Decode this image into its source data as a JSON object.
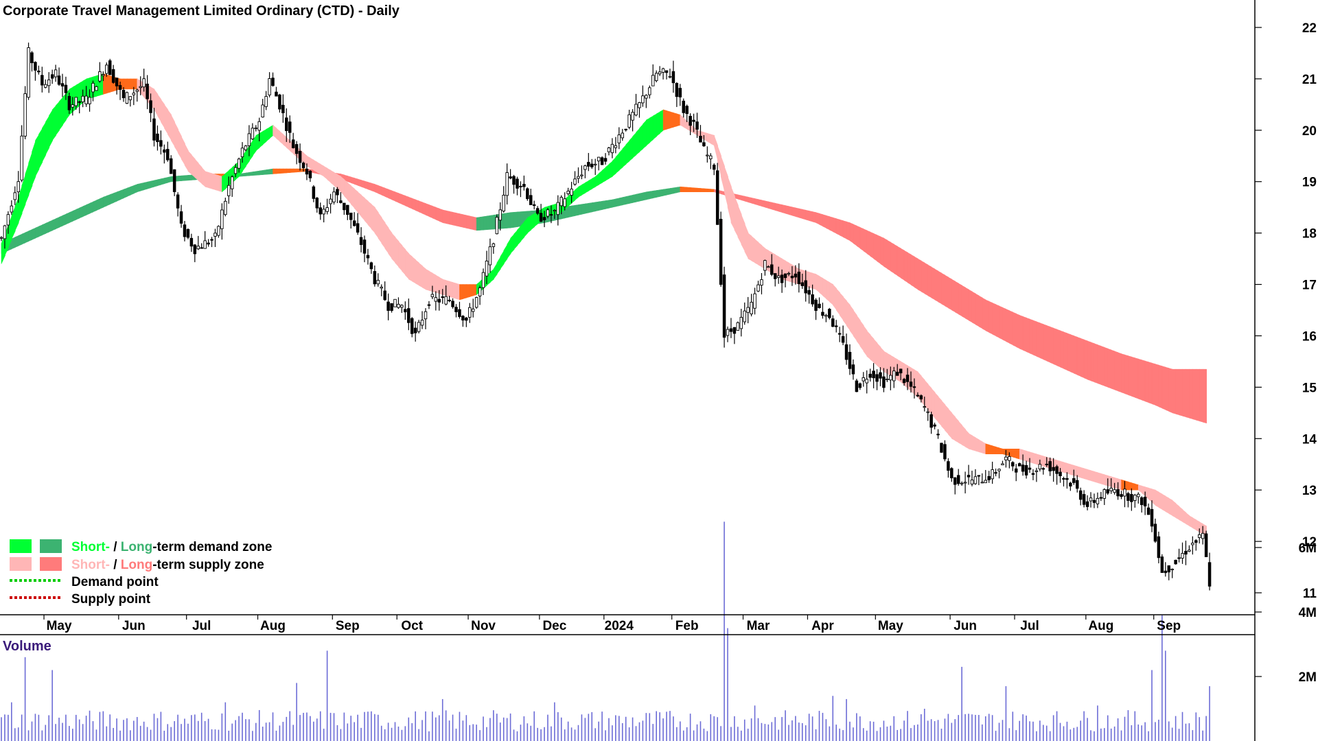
{
  "title": "Corporate Travel Management Limited Ordinary (CTD) - Daily",
  "colors": {
    "short_demand": "#00ff33",
    "long_demand": "#3cb371",
    "short_supply": "#ffb6b6",
    "long_supply": "#ff7b7b",
    "transition": "#ff6a1a",
    "demand_point": "#00cc00",
    "supply_point": "#cc0000",
    "volume_bar": "#6b6bd6",
    "volume_title": "#3a1a7a"
  },
  "legend": {
    "row1_short": "Short-",
    "row1_sep": " / ",
    "row1_long": "Long",
    "row1_rest": "-term demand zone",
    "row2_short": "Short-",
    "row2_sep": " / ",
    "row2_long": "Long",
    "row2_rest": "-term supply zone",
    "row3": "Demand point",
    "row4": "Supply point"
  },
  "volume_title": "Volume",
  "chart_data": {
    "type": "candlestick",
    "x_ticks": [
      "May",
      "Jun",
      "Jul",
      "Aug",
      "Sep",
      "Oct",
      "Nov",
      "Dec",
      "2024",
      "Feb",
      "Mar",
      "Apr",
      "May",
      "Jun",
      "Jul",
      "Aug",
      "Sep"
    ],
    "y_ticks": [
      "22",
      "21",
      "20",
      "19",
      "18",
      "17",
      "16",
      "15",
      "14",
      "13",
      "12",
      "11"
    ],
    "ylim": [
      10.6,
      22.5
    ],
    "x_range": [
      0,
      365
    ],
    "tick_positions_days": [
      17,
      39,
      59,
      80,
      102,
      121,
      142,
      163,
      182,
      202,
      223,
      242,
      262,
      284,
      303,
      324,
      344
    ],
    "price_anchors": [
      [
        0,
        17.9
      ],
      [
        5,
        19.1
      ],
      [
        8,
        21.5
      ],
      [
        12,
        20.9
      ],
      [
        16,
        21.1
      ],
      [
        20,
        20.5
      ],
      [
        25,
        20.6
      ],
      [
        31,
        21.3
      ],
      [
        36,
        20.6
      ],
      [
        42,
        20.9
      ],
      [
        45,
        19.9
      ],
      [
        49,
        19.5
      ],
      [
        53,
        18.1
      ],
      [
        57,
        17.7
      ],
      [
        63,
        17.9
      ],
      [
        67,
        18.9
      ],
      [
        71,
        19.6
      ],
      [
        76,
        20.2
      ],
      [
        79,
        21.0
      ],
      [
        82,
        20.5
      ],
      [
        86,
        19.7
      ],
      [
        90,
        19.2
      ],
      [
        94,
        18.3
      ],
      [
        98,
        18.8
      ],
      [
        102,
        18.4
      ],
      [
        106,
        17.8
      ],
      [
        110,
        17.1
      ],
      [
        114,
        16.6
      ],
      [
        118,
        16.6
      ],
      [
        122,
        16.0
      ],
      [
        126,
        16.7
      ],
      [
        132,
        16.7
      ],
      [
        137,
        16.3
      ],
      [
        141,
        16.9
      ],
      [
        145,
        17.9
      ],
      [
        149,
        19.1
      ],
      [
        154,
        18.9
      ],
      [
        158,
        18.3
      ],
      [
        163,
        18.4
      ],
      [
        168,
        18.9
      ],
      [
        172,
        19.3
      ],
      [
        177,
        19.4
      ],
      [
        183,
        20.0
      ],
      [
        188,
        20.5
      ],
      [
        193,
        21.1
      ],
      [
        197,
        21.1
      ],
      [
        201,
        20.4
      ],
      [
        204,
        20.1
      ],
      [
        207,
        19.6
      ],
      [
        210,
        19.3
      ],
      [
        213,
        16.0
      ],
      [
        217,
        16.2
      ],
      [
        221,
        16.6
      ],
      [
        225,
        17.4
      ],
      [
        229,
        17.1
      ],
      [
        234,
        17.2
      ],
      [
        238,
        16.8
      ],
      [
        241,
        16.5
      ],
      [
        244,
        16.4
      ],
      [
        248,
        15.8
      ],
      [
        252,
        15.0
      ],
      [
        256,
        15.3
      ],
      [
        260,
        15.1
      ],
      [
        264,
        15.3
      ],
      [
        268,
        15.0
      ],
      [
        272,
        14.6
      ],
      [
        276,
        14.0
      ],
      [
        280,
        13.2
      ],
      [
        284,
        13.2
      ],
      [
        288,
        13.2
      ],
      [
        292,
        13.3
      ],
      [
        296,
        13.6
      ],
      [
        300,
        13.4
      ],
      [
        304,
        13.4
      ],
      [
        308,
        13.5
      ],
      [
        312,
        13.3
      ],
      [
        316,
        13.1
      ],
      [
        320,
        12.7
      ],
      [
        324,
        12.9
      ],
      [
        328,
        13.0
      ],
      [
        332,
        12.9
      ],
      [
        336,
        12.8
      ],
      [
        339,
        12.4
      ],
      [
        342,
        11.4
      ],
      [
        346,
        11.6
      ],
      [
        350,
        11.9
      ],
      [
        354,
        12.1
      ],
      [
        356,
        11.2
      ]
    ],
    "short_band": [
      [
        0,
        17.4,
        17.8
      ],
      [
        5,
        18.2,
        18.7
      ],
      [
        10,
        19.1,
        19.8
      ],
      [
        15,
        19.8,
        20.4
      ],
      [
        20,
        20.3,
        20.8
      ],
      [
        25,
        20.6,
        21.0
      ],
      [
        30,
        20.7,
        21.1
      ],
      [
        35,
        20.8,
        21.0
      ],
      [
        40,
        20.8,
        21.0
      ],
      [
        45,
        20.4,
        20.8
      ],
      [
        50,
        19.8,
        20.3
      ],
      [
        55,
        19.2,
        19.6
      ],
      [
        60,
        18.9,
        19.2
      ],
      [
        65,
        18.8,
        19.1
      ],
      [
        70,
        19.1,
        19.4
      ],
      [
        75,
        19.6,
        19.9
      ],
      [
        80,
        19.9,
        20.1
      ],
      [
        85,
        19.6,
        19.8
      ],
      [
        90,
        19.3,
        19.5
      ],
      [
        95,
        19.1,
        19.3
      ],
      [
        100,
        18.8,
        19.1
      ],
      [
        105,
        18.4,
        18.8
      ],
      [
        110,
        18.0,
        18.5
      ],
      [
        115,
        17.5,
        18.0
      ],
      [
        120,
        17.1,
        17.6
      ],
      [
        125,
        16.9,
        17.3
      ],
      [
        130,
        16.8,
        17.1
      ],
      [
        135,
        16.7,
        17.0
      ],
      [
        140,
        16.8,
        17.0
      ],
      [
        145,
        17.1,
        17.3
      ],
      [
        150,
        17.6,
        17.9
      ],
      [
        155,
        18.0,
        18.3
      ],
      [
        160,
        18.3,
        18.5
      ],
      [
        165,
        18.4,
        18.6
      ],
      [
        170,
        18.7,
        18.9
      ],
      [
        175,
        18.9,
        19.1
      ],
      [
        180,
        19.1,
        19.4
      ],
      [
        185,
        19.4,
        19.8
      ],
      [
        190,
        19.7,
        20.2
      ],
      [
        195,
        20.0,
        20.4
      ],
      [
        200,
        20.1,
        20.3
      ],
      [
        205,
        19.9,
        20.0
      ],
      [
        210,
        19.7,
        19.9
      ],
      [
        215,
        18.2,
        18.9
      ],
      [
        220,
        17.5,
        18.0
      ],
      [
        225,
        17.3,
        17.7
      ],
      [
        230,
        17.1,
        17.5
      ],
      [
        235,
        17.0,
        17.3
      ],
      [
        240,
        16.9,
        17.2
      ],
      [
        245,
        16.6,
        17.0
      ],
      [
        250,
        16.1,
        16.6
      ],
      [
        255,
        15.6,
        16.1
      ],
      [
        260,
        15.3,
        15.7
      ],
      [
        265,
        15.1,
        15.5
      ],
      [
        270,
        14.8,
        15.3
      ],
      [
        275,
        14.4,
        14.9
      ],
      [
        280,
        14.0,
        14.5
      ],
      [
        285,
        13.8,
        14.1
      ],
      [
        290,
        13.7,
        13.9
      ],
      [
        295,
        13.7,
        13.8
      ],
      [
        300,
        13.6,
        13.8
      ],
      [
        305,
        13.5,
        13.7
      ],
      [
        310,
        13.4,
        13.6
      ],
      [
        315,
        13.3,
        13.5
      ],
      [
        320,
        13.2,
        13.4
      ],
      [
        325,
        13.1,
        13.3
      ],
      [
        330,
        13.0,
        13.2
      ],
      [
        335,
        13.0,
        13.1
      ],
      [
        340,
        12.7,
        13.0
      ],
      [
        345,
        12.5,
        12.8
      ],
      [
        350,
        12.3,
        12.5
      ],
      [
        355,
        12.1,
        12.3
      ]
    ],
    "long_band": [
      [
        0,
        17.6,
        17.8
      ],
      [
        10,
        17.9,
        18.1
      ],
      [
        20,
        18.2,
        18.4
      ],
      [
        30,
        18.5,
        18.7
      ],
      [
        40,
        18.8,
        18.95
      ],
      [
        50,
        19.0,
        19.1
      ],
      [
        60,
        19.05,
        19.15
      ],
      [
        70,
        19.1,
        19.15
      ],
      [
        80,
        19.15,
        19.25
      ],
      [
        90,
        19.2,
        19.25
      ],
      [
        100,
        19.05,
        19.15
      ],
      [
        110,
        18.8,
        18.95
      ],
      [
        120,
        18.5,
        18.7
      ],
      [
        130,
        18.2,
        18.45
      ],
      [
        140,
        18.05,
        18.3
      ],
      [
        150,
        18.1,
        18.4
      ],
      [
        160,
        18.2,
        18.45
      ],
      [
        170,
        18.35,
        18.55
      ],
      [
        180,
        18.5,
        18.65
      ],
      [
        190,
        18.65,
        18.8
      ],
      [
        200,
        18.8,
        18.9
      ],
      [
        210,
        18.8,
        18.85
      ],
      [
        220,
        18.6,
        18.7
      ],
      [
        230,
        18.4,
        18.55
      ],
      [
        240,
        18.2,
        18.4
      ],
      [
        250,
        17.85,
        18.2
      ],
      [
        260,
        17.35,
        17.9
      ],
      [
        270,
        16.9,
        17.5
      ],
      [
        280,
        16.5,
        17.1
      ],
      [
        290,
        16.1,
        16.7
      ],
      [
        300,
        15.75,
        16.4
      ],
      [
        310,
        15.45,
        16.15
      ],
      [
        320,
        15.15,
        15.9
      ],
      [
        330,
        14.9,
        15.65
      ],
      [
        340,
        14.65,
        15.45
      ],
      [
        345,
        14.5,
        15.35
      ],
      [
        355,
        14.3,
        15.35
      ]
    ],
    "volume": {
      "y_ticks": [
        "6M",
        "4M",
        "2M"
      ],
      "ylim": [
        0,
        7.0
      ],
      "typical": 0.6,
      "spikes": [
        [
          3,
          1.2
        ],
        [
          7,
          2.6
        ],
        [
          15,
          2.2
        ],
        [
          66,
          1.2
        ],
        [
          87,
          1.8
        ],
        [
          96,
          2.8
        ],
        [
          107,
          0.9
        ],
        [
          130,
          1.3
        ],
        [
          163,
          1.2
        ],
        [
          213,
          6.8
        ],
        [
          214,
          3.5
        ],
        [
          222,
          1.1
        ],
        [
          245,
          1.4
        ],
        [
          249,
          1.3
        ],
        [
          272,
          1.0
        ],
        [
          283,
          2.3
        ],
        [
          296,
          1.7
        ],
        [
          323,
          1.1
        ],
        [
          339,
          2.2
        ],
        [
          342,
          3.9
        ],
        [
          343,
          2.8
        ],
        [
          356,
          1.7
        ]
      ]
    }
  }
}
